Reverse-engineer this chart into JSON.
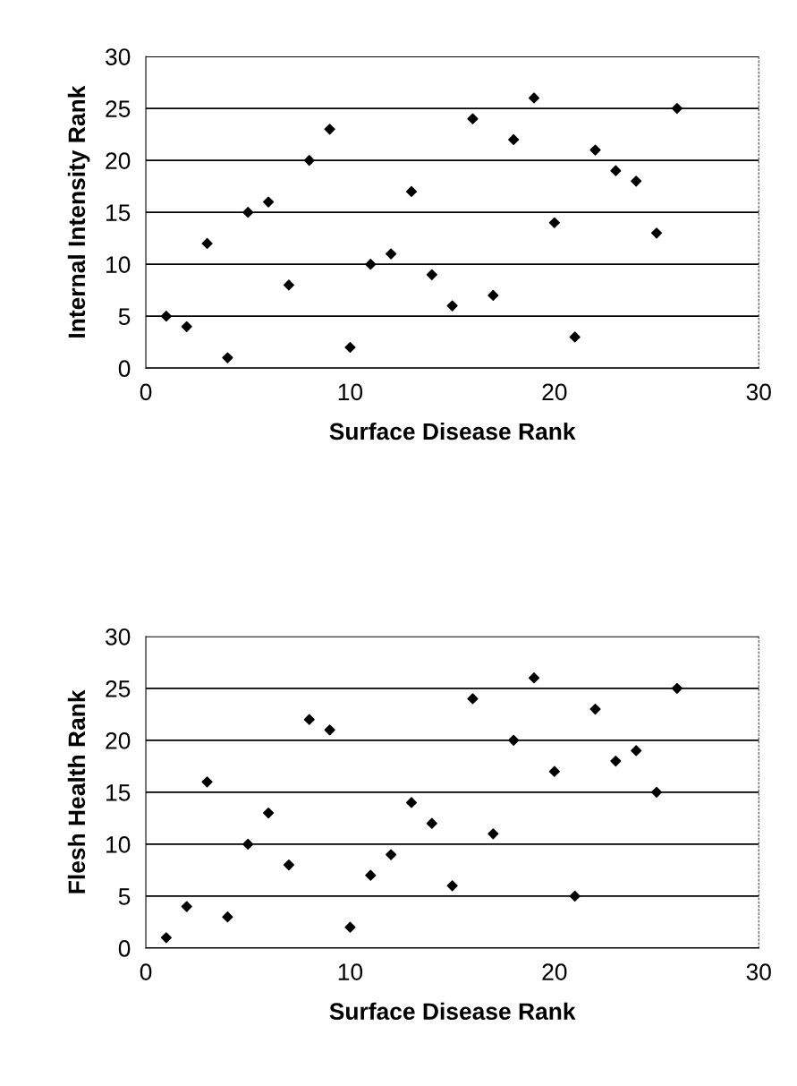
{
  "chart_data": [
    {
      "type": "scatter",
      "xlabel": "Surface Disease Rank",
      "ylabel": "Internal Intensity Rank",
      "x": [
        1,
        2,
        3,
        4,
        5,
        6,
        7,
        8,
        9,
        10,
        11,
        12,
        13,
        14,
        15,
        16,
        17,
        18,
        19,
        20,
        21,
        22,
        23,
        24,
        25,
        26
      ],
      "values": [
        5,
        4,
        12,
        1,
        15,
        16,
        8,
        20,
        23,
        2,
        10,
        11,
        17,
        9,
        6,
        24,
        7,
        22,
        26,
        14,
        3,
        21,
        19,
        18,
        13,
        25
      ],
      "color": "#000000",
      "marker": "diamond",
      "grid": "y",
      "xlim": [
        0,
        30
      ],
      "xticks": [
        0,
        10,
        20,
        30
      ],
      "ylim": [
        0,
        30
      ],
      "yticks": [
        0,
        5,
        10,
        15,
        20,
        25,
        30
      ]
    },
    {
      "type": "scatter",
      "xlabel": "Surface Disease Rank",
      "ylabel": "Flesh Health Rank",
      "x": [
        1,
        2,
        3,
        4,
        5,
        6,
        7,
        8,
        9,
        10,
        11,
        12,
        13,
        14,
        15,
        16,
        17,
        18,
        19,
        20,
        21,
        22,
        23,
        24,
        25,
        26
      ],
      "values": [
        1,
        4,
        16,
        3,
        10,
        13,
        8,
        22,
        21,
        2,
        7,
        9,
        14,
        12,
        6,
        24,
        11,
        20,
        26,
        17,
        5,
        23,
        18,
        19,
        15,
        25
      ],
      "color": "#000000",
      "marker": "diamond",
      "grid": "y",
      "xlim": [
        0,
        30
      ],
      "xticks": [
        0,
        10,
        20,
        30
      ],
      "ylim": [
        0,
        30
      ],
      "yticks": [
        0,
        5,
        10,
        15,
        20,
        25,
        30
      ]
    }
  ]
}
